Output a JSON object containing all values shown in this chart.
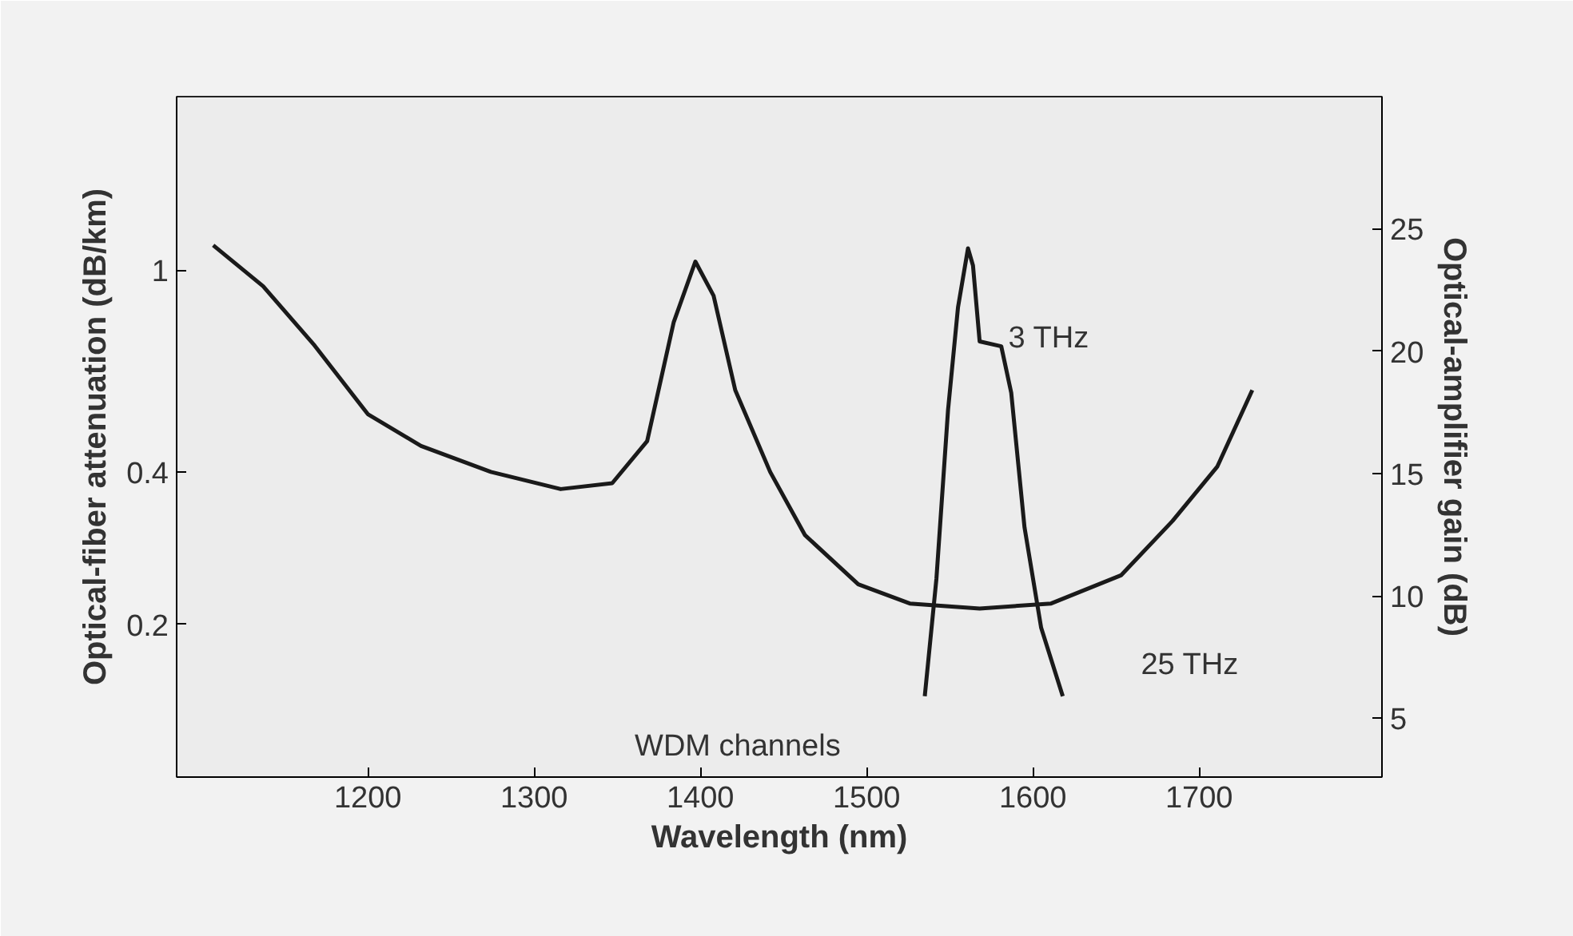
{
  "chart_data": {
    "type": "line",
    "xlabel": "Wavelength (nm)",
    "ylabel": "Optical-fiber attenuation (dB/km)",
    "y2label": "Optical-amplifier gain (dB)",
    "xlim": [
      1085,
      1810
    ],
    "xticks": [
      1200,
      1300,
      1400,
      1500,
      1600,
      1700
    ],
    "ylim": [
      0.1,
      2.2
    ],
    "yticks": [
      0.2,
      0.4,
      1
    ],
    "log": "y",
    "y2lim": [
      2.6,
      30.4
    ],
    "y2ticks": [
      5,
      10,
      15,
      20,
      25
    ],
    "grid": false,
    "marker": "none",
    "line_style": "solid",
    "annotations": [
      "3 THz",
      "25 THz",
      "WDM channels"
    ],
    "series": [
      {
        "color": "#1a1a1a",
        "x": [
          1107,
          1137,
          1168,
          1200,
          1232,
          1274,
          1316,
          1347,
          1368,
          1384,
          1397,
          1408,
          1421,
          1442,
          1463,
          1495,
          1526,
          1568,
          1611,
          1653,
          1684,
          1711,
          1732
        ],
        "values": [
          1.12,
          0.93,
          0.71,
          0.52,
          0.45,
          0.4,
          0.37,
          0.38,
          0.46,
          0.79,
          1.04,
          0.89,
          0.58,
          0.4,
          0.3,
          0.24,
          0.22,
          0.215,
          0.22,
          0.25,
          0.32,
          0.41,
          0.58
        ]
      },
      {
        "color": "#1a1a1a",
        "axis": "y2",
        "x": [
          1535,
          1542,
          1549,
          1555,
          1561,
          1564,
          1568,
          1581,
          1587,
          1595,
          1605,
          1618
        ],
        "values": [
          5.9,
          10.7,
          17.6,
          21.8,
          24.2,
          23.5,
          20.4,
          20.2,
          18.3,
          12.8,
          8.7,
          5.9
        ]
      }
    ]
  }
}
